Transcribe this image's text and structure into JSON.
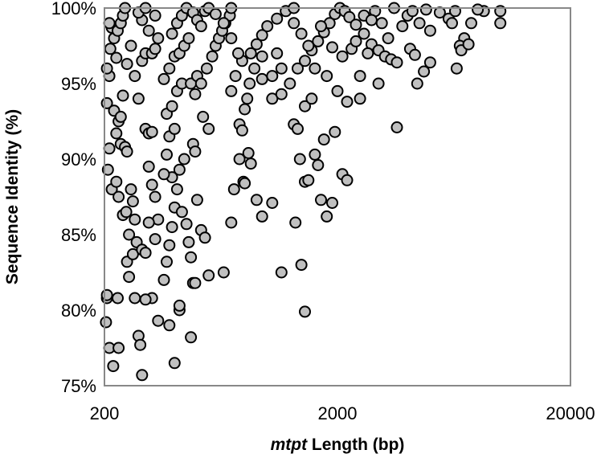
{
  "chart_data": {
    "type": "scatter",
    "title": "",
    "xlabel": "mtpt Length (bp)",
    "xlabel_italic_part": "mtpt",
    "xlabel_rest": " Length (bp)",
    "ylabel": "Sequence Identity (%)",
    "xscale": "log",
    "xlim": [
      200,
      20000
    ],
    "ylim": [
      75,
      100
    ],
    "xticks": [
      "200",
      "2000",
      "20000"
    ],
    "xtick_values": [
      200,
      2000,
      20000
    ],
    "yticks": [
      "75%",
      "80%",
      "85%",
      "90%",
      "95%",
      "100%"
    ],
    "ytick_values": [
      75,
      80,
      85,
      90,
      95,
      100
    ],
    "grid": false,
    "legend": "none",
    "marker_fill": "#c0c0c0",
    "marker_stroke": "#000000",
    "frame_color": "#888888",
    "points": [
      [
        205,
        80.8
      ],
      [
        205,
        81.0
      ],
      [
        203,
        79.2
      ],
      [
        210,
        77.5
      ],
      [
        218,
        76.3
      ],
      [
        230,
        77.5
      ],
      [
        228,
        80.8
      ],
      [
        207,
        89.3
      ],
      [
        210,
        90.7
      ],
      [
        205,
        93.7
      ],
      [
        210,
        95.5
      ],
      [
        205,
        96.0
      ],
      [
        212,
        97.3
      ],
      [
        215,
        98.7
      ],
      [
        210,
        99.0
      ],
      [
        220,
        98.0
      ],
      [
        225,
        96.7
      ],
      [
        228,
        98.5
      ],
      [
        235,
        99.0
      ],
      [
        240,
        99.5
      ],
      [
        245,
        100
      ],
      [
        220,
        93.2
      ],
      [
        230,
        92.5
      ],
      [
        225,
        91.7
      ],
      [
        235,
        91.0
      ],
      [
        245,
        90.8
      ],
      [
        250,
        90.5
      ],
      [
        215,
        88.0
      ],
      [
        225,
        88.5
      ],
      [
        230,
        87.5
      ],
      [
        240,
        86.3
      ],
      [
        248,
        86.5
      ],
      [
        255,
        85.0
      ],
      [
        260,
        88.0
      ],
      [
        265,
        87.2
      ],
      [
        270,
        86.0
      ],
      [
        250,
        83.2
      ],
      [
        265,
        83.7
      ],
      [
        270,
        80.8
      ],
      [
        280,
        78.3
      ],
      [
        285,
        77.7
      ],
      [
        290,
        75.7
      ],
      [
        275,
        84.5
      ],
      [
        290,
        84.0
      ],
      [
        300,
        83.8
      ],
      [
        255,
        82.2
      ],
      [
        300,
        92.0
      ],
      [
        310,
        91.7
      ],
      [
        320,
        91.8
      ],
      [
        280,
        94.0
      ],
      [
        270,
        95.5
      ],
      [
        290,
        96.5
      ],
      [
        300,
        97.0
      ],
      [
        320,
        97.0
      ],
      [
        330,
        97.3
      ],
      [
        340,
        98.0
      ],
      [
        310,
        98.5
      ],
      [
        290,
        99.2
      ],
      [
        280,
        99.7
      ],
      [
        300,
        100
      ],
      [
        330,
        99.5
      ],
      [
        260,
        97.5
      ],
      [
        250,
        96.3
      ],
      [
        240,
        94.2
      ],
      [
        235,
        92.8
      ],
      [
        310,
        89.5
      ],
      [
        320,
        88.3
      ],
      [
        330,
        87.5
      ],
      [
        340,
        86.0
      ],
      [
        310,
        85.8
      ],
      [
        330,
        84.7
      ],
      [
        340,
        79.3
      ],
      [
        320,
        80.8
      ],
      [
        300,
        80.7
      ],
      [
        360,
        82.0
      ],
      [
        380,
        79.0
      ],
      [
        400,
        76.5
      ],
      [
        370,
        83.2
      ],
      [
        380,
        84.3
      ],
      [
        390,
        85.5
      ],
      [
        400,
        86.8
      ],
      [
        410,
        88.0
      ],
      [
        390,
        88.8
      ],
      [
        420,
        89.3
      ],
      [
        440,
        90.0
      ],
      [
        430,
        86.5
      ],
      [
        450,
        85.7
      ],
      [
        460,
        84.5
      ],
      [
        470,
        83.5
      ],
      [
        480,
        81.8
      ],
      [
        490,
        81.8
      ],
      [
        470,
        78.2
      ],
      [
        420,
        80.0
      ],
      [
        420,
        80.3
      ],
      [
        360,
        89.0
      ],
      [
        370,
        90.3
      ],
      [
        380,
        91.5
      ],
      [
        400,
        92.0
      ],
      [
        370,
        93.0
      ],
      [
        390,
        93.5
      ],
      [
        410,
        94.5
      ],
      [
        430,
        95.0
      ],
      [
        360,
        95.3
      ],
      [
        380,
        96.0
      ],
      [
        400,
        96.8
      ],
      [
        420,
        97.0
      ],
      [
        440,
        97.5
      ],
      [
        460,
        98.0
      ],
      [
        390,
        98.3
      ],
      [
        410,
        99.0
      ],
      [
        430,
        99.5
      ],
      [
        450,
        100
      ],
      [
        480,
        99.7
      ],
      [
        500,
        99.2
      ],
      [
        520,
        98.8
      ],
      [
        540,
        99.8
      ],
      [
        560,
        100
      ],
      [
        470,
        95.0
      ],
      [
        490,
        94.3
      ],
      [
        500,
        95.5
      ],
      [
        520,
        95.0
      ],
      [
        550,
        96.0
      ],
      [
        580,
        96.8
      ],
      [
        600,
        97.5
      ],
      [
        620,
        98.0
      ],
      [
        640,
        98.5
      ],
      [
        660,
        99.0
      ],
      [
        690,
        99.5
      ],
      [
        700,
        100
      ],
      [
        530,
        92.8
      ],
      [
        560,
        92.0
      ],
      [
        480,
        91.0
      ],
      [
        490,
        90.5
      ],
      [
        500,
        87.3
      ],
      [
        520,
        85.3
      ],
      [
        540,
        84.8
      ],
      [
        560,
        82.3
      ],
      [
        650,
        82.5
      ],
      [
        700,
        85.8
      ],
      [
        720,
        88.0
      ],
      [
        760,
        90.0
      ],
      [
        790,
        88.5
      ],
      [
        800,
        88.4
      ],
      [
        830,
        90.4
      ],
      [
        850,
        89.7
      ],
      [
        900,
        87.3
      ],
      [
        950,
        86.2
      ],
      [
        1050,
        87.1
      ],
      [
        760,
        92.3
      ],
      [
        780,
        91.9
      ],
      [
        800,
        93.3
      ],
      [
        820,
        94.0
      ],
      [
        840,
        95.0
      ],
      [
        700,
        94.5
      ],
      [
        730,
        95.5
      ],
      [
        780,
        96.5
      ],
      [
        850,
        97.0
      ],
      [
        900,
        97.6
      ],
      [
        950,
        98.2
      ],
      [
        1000,
        98.8
      ],
      [
        1100,
        99.3
      ],
      [
        1200,
        99.8
      ],
      [
        1300,
        100
      ],
      [
        750,
        97.0
      ],
      [
        700,
        98.0
      ],
      [
        650,
        99.0
      ],
      [
        600,
        99.6
      ],
      [
        880,
        96.0
      ],
      [
        950,
        95.3
      ],
      [
        1050,
        94.0
      ],
      [
        1150,
        94.3
      ],
      [
        1250,
        95.0
      ],
      [
        1350,
        96.0
      ],
      [
        1450,
        96.5
      ],
      [
        1550,
        97.2
      ],
      [
        1650,
        97.8
      ],
      [
        1750,
        98.4
      ],
      [
        1850,
        99.0
      ],
      [
        1950,
        99.6
      ],
      [
        2050,
        100
      ],
      [
        2150,
        99.8
      ],
      [
        2250,
        99.4
      ],
      [
        2400,
        98.9
      ],
      [
        2600,
        98.3
      ],
      [
        2800,
        97.6
      ],
      [
        3000,
        97.2
      ],
      [
        3200,
        96.8
      ],
      [
        3400,
        96.6
      ],
      [
        3600,
        96.4
      ],
      [
        3300,
        98.0
      ],
      [
        3100,
        99.0
      ],
      [
        2900,
        99.8
      ],
      [
        3500,
        100
      ],
      [
        4000,
        99.5
      ],
      [
        4500,
        99.0
      ],
      [
        5000,
        98.5
      ],
      [
        5500,
        99.7
      ],
      [
        6000,
        99.3
      ],
      [
        6200,
        99.0
      ],
      [
        6400,
        99.8
      ],
      [
        7000,
        98.0
      ],
      [
        7500,
        99.0
      ],
      [
        6700,
        97.5
      ],
      [
        6500,
        96.0
      ],
      [
        6800,
        97.2
      ],
      [
        7300,
        97.6
      ],
      [
        8500,
        99.8
      ],
      [
        10000,
        99.0
      ],
      [
        10000,
        99.8
      ],
      [
        5000,
        96.4
      ],
      [
        4700,
        95.8
      ],
      [
        3000,
        95.0
      ],
      [
        2500,
        94.0
      ],
      [
        2200,
        93.8
      ],
      [
        2000,
        94.5
      ],
      [
        1800,
        95.5
      ],
      [
        1600,
        96.0
      ],
      [
        1500,
        97.5
      ],
      [
        1400,
        98.3
      ],
      [
        1300,
        99.0
      ],
      [
        1700,
        98.8
      ],
      [
        1900,
        97.4
      ],
      [
        2100,
        96.8
      ],
      [
        2300,
        97.3
      ],
      [
        2500,
        95.5
      ],
      [
        2700,
        97.0
      ],
      [
        1750,
        91.3
      ],
      [
        1950,
        91.8
      ],
      [
        2100,
        89.0
      ],
      [
        2200,
        88.6
      ],
      [
        3600,
        92.1
      ],
      [
        4400,
        95.0
      ],
      [
        1150,
        82.5
      ],
      [
        1400,
        83.0
      ],
      [
        1450,
        79.9
      ],
      [
        1320,
        85.8
      ],
      [
        1450,
        88.5
      ],
      [
        1500,
        88.6
      ],
      [
        1380,
        90.0
      ],
      [
        1600,
        90.3
      ],
      [
        1650,
        89.6
      ],
      [
        1700,
        87.3
      ],
      [
        1800,
        86.2
      ],
      [
        1900,
        87.1
      ],
      [
        1300,
        92.3
      ],
      [
        1350,
        92.0
      ],
      [
        1450,
        93.5
      ],
      [
        1550,
        94.0
      ],
      [
        1150,
        96.0
      ],
      [
        1100,
        97.0
      ],
      [
        1050,
        95.5
      ],
      [
        950,
        96.8
      ],
      [
        2400,
        97.8
      ],
      [
        2600,
        99.5
      ],
      [
        2800,
        99.2
      ],
      [
        4200,
        99.8
      ],
      [
        4800,
        99.9
      ],
      [
        8000,
        99.9
      ],
      [
        3800,
        98.8
      ],
      [
        4100,
        97.3
      ],
      [
        4300,
        96.9
      ]
    ]
  }
}
